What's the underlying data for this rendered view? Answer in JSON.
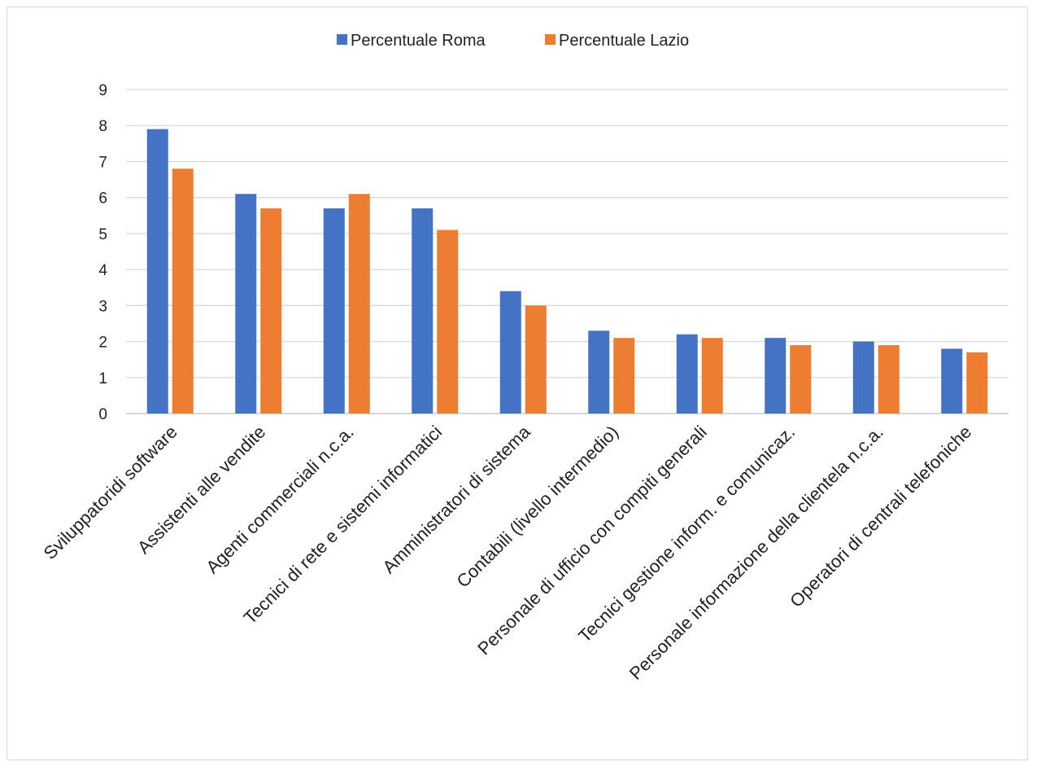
{
  "chart_data": {
    "type": "bar",
    "title": "",
    "xlabel": "",
    "ylabel": "",
    "ylim": [
      0,
      9
    ],
    "yticks": [
      0,
      1,
      2,
      3,
      4,
      5,
      6,
      7,
      8,
      9
    ],
    "grid": true,
    "legend_position": "top",
    "categories": [
      "Sviluppatoridi software",
      "Assistenti alle vendite",
      "Agenti commerciali n.c.a.",
      "Tecnici di rete e sistemi informatici",
      "Amministratori di sistema",
      "Contabili (livello intermedio)",
      "Personale di ufficio con compiti generali",
      "Tecnici gestione inform. e comunicaz.",
      "Personale informazione della clientela n.c.a.",
      "Operatori di centrali telefoniche"
    ],
    "series": [
      {
        "name": "Percentuale Roma",
        "color": "#4472c4",
        "values": [
          7.9,
          6.1,
          5.7,
          5.7,
          3.4,
          2.3,
          2.2,
          2.1,
          2.0,
          1.8
        ]
      },
      {
        "name": "Percentuale Lazio",
        "color": "#ed7d31",
        "values": [
          6.8,
          5.7,
          6.1,
          5.1,
          3.0,
          2.1,
          2.1,
          1.9,
          1.9,
          1.7
        ]
      }
    ]
  }
}
